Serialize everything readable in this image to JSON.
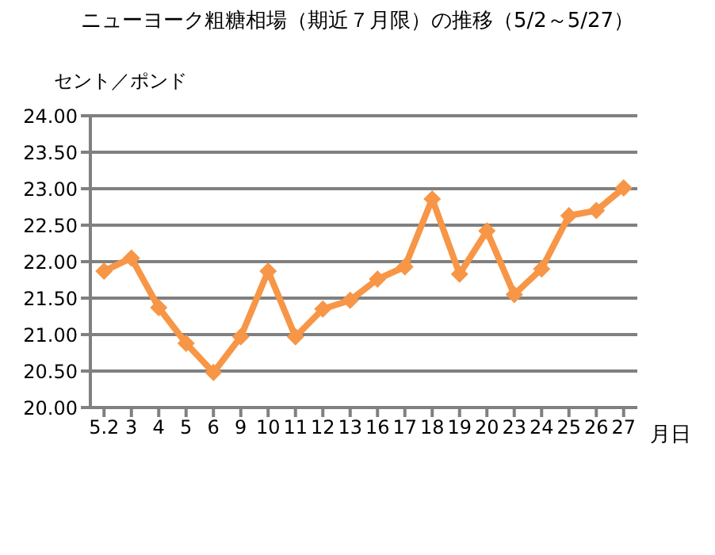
{
  "chart_data": {
    "type": "line",
    "title": "ニューヨーク粗糖相場（期近７月限）の推移（5/2～5/27）",
    "ylabel": "セント／ポンド",
    "xlabel": "月日",
    "categories": [
      "5.2",
      "3",
      "4",
      "5",
      "6",
      "9",
      "10",
      "11",
      "12",
      "13",
      "16",
      "17",
      "18",
      "19",
      "20",
      "23",
      "24",
      "25",
      "26",
      "27"
    ],
    "series": [
      {
        "color": "#f79646",
        "values": [
          21.87,
          22.05,
          21.37,
          20.88,
          20.48,
          20.97,
          21.87,
          20.97,
          21.35,
          21.47,
          21.76,
          21.93,
          22.86,
          21.83,
          22.42,
          21.55,
          21.9,
          22.63,
          22.7,
          23.01
        ]
      }
    ],
    "ylim": [
      20,
      24
    ],
    "yticks": [
      {
        "value": 20,
        "label": "20.00"
      },
      {
        "value": 20.5,
        "label": "20.50"
      },
      {
        "value": 21,
        "label": "21.00"
      },
      {
        "value": 21.5,
        "label": "21.50"
      },
      {
        "value": 22,
        "label": "22.00"
      },
      {
        "value": 22.5,
        "label": "22.50"
      },
      {
        "value": 23,
        "label": "23.00"
      },
      {
        "value": 23.5,
        "label": "23.50"
      },
      {
        "value": 24,
        "label": "24.00"
      }
    ],
    "grid": "y",
    "marker": "diamond",
    "line_style": "solid"
  }
}
